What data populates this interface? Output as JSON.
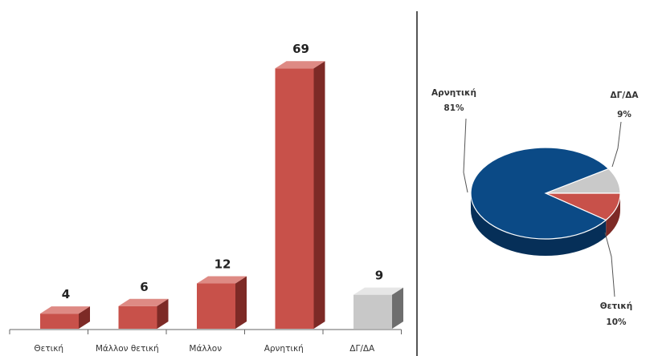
{
  "chart_data": [
    {
      "type": "bar",
      "categories": [
        "Θετική",
        "Μάλλον θετική",
        "Μάλλον",
        "Αρνητική",
        "ΔΓ/ΔΑ"
      ],
      "values": [
        4,
        6,
        12,
        69,
        9
      ],
      "value_labels": [
        "4",
        "6",
        "12",
        "69",
        "9"
      ],
      "ylim": [
        0,
        75
      ],
      "grid": false,
      "colors": [
        "#c8514a",
        "#c8514a",
        "#c8514a",
        "#c8514a",
        "#c8c8c8"
      ],
      "side_colors": [
        "#7d2a26",
        "#7d2a26",
        "#7d2a26",
        "#7d2a26",
        "#6e6e6e"
      ],
      "top_colors": [
        "#de8a84",
        "#de8a84",
        "#de8a84",
        "#de8a84",
        "#e6e6e6"
      ]
    },
    {
      "type": "pie",
      "slices": [
        {
          "label": "Αρνητική",
          "pct_label": "81%",
          "value": 81,
          "color": "#0b4a86",
          "side_color": "#062f58"
        },
        {
          "label": "ΔΓ/ΔΑ",
          "pct_label": "9%",
          "value": 9,
          "color": "#c9c9c9",
          "side_color": "#8c8c8c"
        },
        {
          "label": "Θετική",
          "pct_label": "10%",
          "value": 10,
          "color": "#c8514a",
          "side_color": "#7d2a26"
        }
      ],
      "legend": "none"
    }
  ]
}
